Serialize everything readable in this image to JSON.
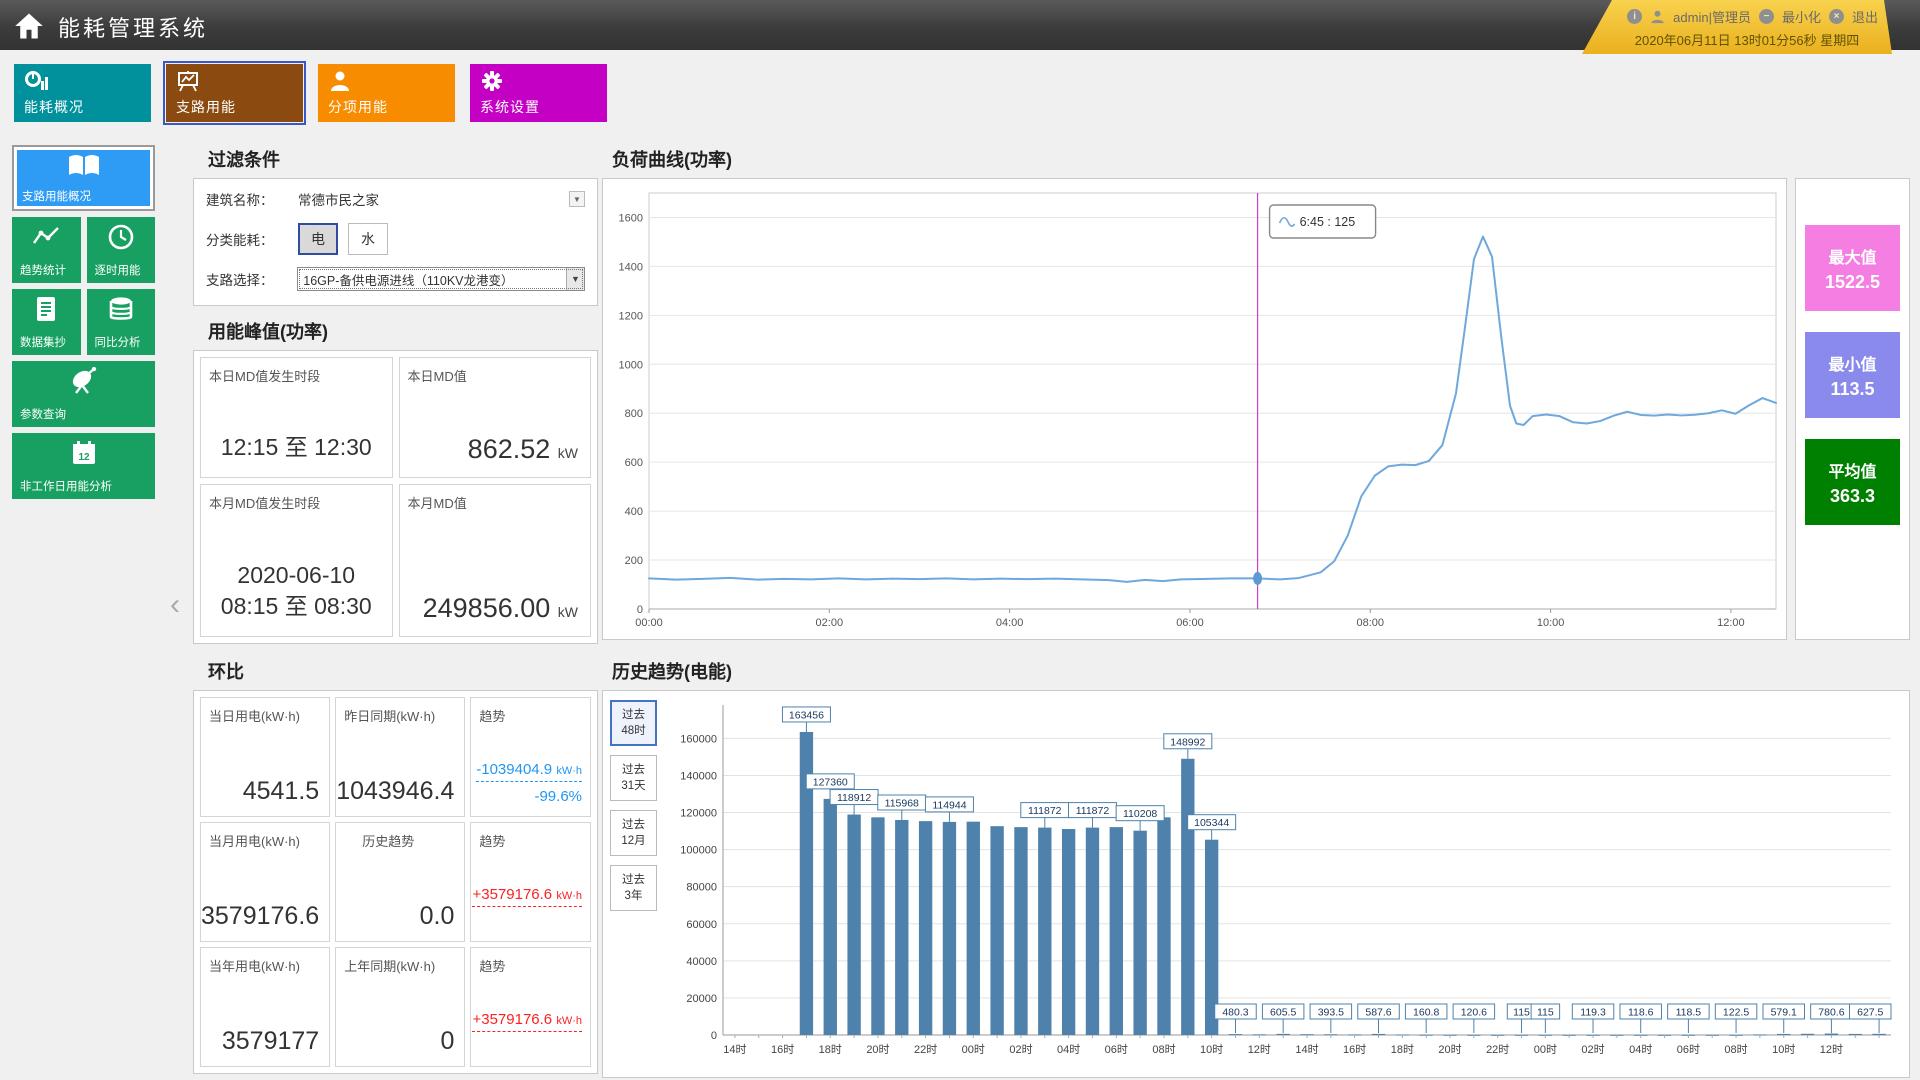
{
  "app": {
    "title": "能耗管理系统"
  },
  "userbar": {
    "user": "admin|管理员",
    "minimize": "最小化",
    "logout": "退出",
    "datetime": "2020年06月11日 13时01分56秒 星期四"
  },
  "nav": [
    {
      "label": "能耗概况",
      "color": "#00919c",
      "active": false
    },
    {
      "label": "支路用能",
      "color": "#8b4a10",
      "active": true
    },
    {
      "label": "分项用能",
      "color": "#f88c00",
      "active": false
    },
    {
      "label": "系统设置",
      "color": "#c400c4",
      "active": false
    }
  ],
  "sidebar": [
    {
      "label": "支路用能概况",
      "color": "#2e9cf4",
      "active": true
    },
    {
      "label": "趋势统计",
      "color": "#17a061",
      "active": false
    },
    {
      "label": "逐时用能",
      "color": "#17a061",
      "active": false
    },
    {
      "label": "数据集抄",
      "color": "#17a061",
      "active": false
    },
    {
      "label": "同比分析",
      "color": "#17a061",
      "active": false
    },
    {
      "label": "参数查询",
      "color": "#17a061",
      "active": false
    },
    {
      "label": "非工作日用能分析",
      "color": "#17a061",
      "active": false
    }
  ],
  "filter": {
    "title": "过滤条件",
    "building_label": "建筑名称：",
    "building_value": "常德市民之家",
    "energy_label": "分类能耗：",
    "energy_options": [
      "电",
      "水"
    ],
    "branch_label": "支路选择：",
    "branch_value": "16GP-备供电源进线（110KV龙港变）"
  },
  "peak": {
    "title": "用能峰值(功率)",
    "cards": [
      {
        "label": "本日MD值发生时段",
        "line1": "12:15  至  12:30",
        "line2": ""
      },
      {
        "label": "本日MD值",
        "value": "862.52",
        "unit": "kW"
      },
      {
        "label": "本月MD值发生时段",
        "line1": "2020-06-10",
        "line2": "08:15  至  08:30"
      },
      {
        "label": "本月MD值",
        "value": "249856.00",
        "unit": "kW"
      }
    ]
  },
  "ring": {
    "title": "环比",
    "cards": [
      {
        "label": "当日用电(kW·h)",
        "value": "4541.5"
      },
      {
        "label": "昨日同期(kW·h)",
        "value": "1043946.4"
      },
      {
        "label": "趋势",
        "value": "-1039404.9",
        "unit": "kW·h",
        "pct": "-99.6%",
        "dir": "down"
      },
      {
        "label": "当月用电(kW·h)",
        "value": "3579176.6"
      },
      {
        "label": "历史趋势",
        "value": "0.0"
      },
      {
        "label": "趋势",
        "value": "+3579176.6",
        "unit": "kW·h",
        "pct": "",
        "dir": "up"
      },
      {
        "label": "当年用电(kW·h)",
        "value": "3579177"
      },
      {
        "label": "上年同期(kW·h)",
        "value": "0"
      },
      {
        "label": "趋势",
        "value": "+3579176.6",
        "unit": "kW·h",
        "pct": "",
        "dir": "up"
      }
    ]
  },
  "badges": [
    {
      "label": "最大值",
      "value": "1522.5",
      "color": "#f57ee3"
    },
    {
      "label": "最小值",
      "value": "113.5",
      "color": "#8a8aec"
    },
    {
      "label": "平均值",
      "value": "363.3",
      "color": "#008000"
    }
  ],
  "history_tabs": [
    {
      "label": "过去\n48时",
      "active": true
    },
    {
      "label": "过去\n31天",
      "active": false
    },
    {
      "label": "过去\n12月",
      "active": false
    },
    {
      "label": "过去\n3年",
      "active": false
    }
  ],
  "chart_data": [
    {
      "id": "load_curve",
      "type": "line",
      "title": "负荷曲线(功率)",
      "ylim": [
        0,
        1700
      ],
      "yticks": [
        0,
        200,
        400,
        600,
        800,
        1000,
        1200,
        1400,
        1600
      ],
      "xlim": [
        0,
        12.5
      ],
      "xticks": [
        {
          "v": 0,
          "label": "00:00"
        },
        {
          "v": 2,
          "label": "02:00"
        },
        {
          "v": 4,
          "label": "04:00"
        },
        {
          "v": 6,
          "label": "06:00"
        },
        {
          "v": 8,
          "label": "08:00"
        },
        {
          "v": 10,
          "label": "10:00"
        },
        {
          "v": 12,
          "label": "12:00"
        }
      ],
      "line_color": "#6fa8dc",
      "crosshair_color": "#cc3fcc",
      "marker": {
        "x": 6.75,
        "y": 125,
        "tooltip": "6:45 : 125"
      },
      "stats": {
        "max": 1522.5,
        "min": 113.5,
        "avg": 363.3
      },
      "points": [
        [
          0,
          125
        ],
        [
          0.3,
          120
        ],
        [
          0.6,
          123
        ],
        [
          0.9,
          127
        ],
        [
          1.2,
          120
        ],
        [
          1.5,
          123
        ],
        [
          1.8,
          121
        ],
        [
          2.1,
          125
        ],
        [
          2.4,
          121
        ],
        [
          2.7,
          124
        ],
        [
          3,
          122
        ],
        [
          3.3,
          125
        ],
        [
          3.6,
          121
        ],
        [
          3.9,
          124
        ],
        [
          4.2,
          122
        ],
        [
          4.5,
          124
        ],
        [
          4.8,
          121
        ],
        [
          5.1,
          118
        ],
        [
          5.3,
          111
        ],
        [
          5.5,
          119
        ],
        [
          5.7,
          114
        ],
        [
          5.9,
          121
        ],
        [
          6.2,
          123
        ],
        [
          6.45,
          125
        ],
        [
          6.75,
          125
        ],
        [
          7,
          121
        ],
        [
          7.2,
          126
        ],
        [
          7.45,
          150
        ],
        [
          7.6,
          195
        ],
        [
          7.75,
          300
        ],
        [
          7.9,
          460
        ],
        [
          8.05,
          545
        ],
        [
          8.2,
          583
        ],
        [
          8.35,
          590
        ],
        [
          8.5,
          588
        ],
        [
          8.65,
          605
        ],
        [
          8.8,
          670
        ],
        [
          8.95,
          880
        ],
        [
          9.05,
          1150
        ],
        [
          9.15,
          1430
        ],
        [
          9.25,
          1522
        ],
        [
          9.35,
          1440
        ],
        [
          9.45,
          1120
        ],
        [
          9.55,
          830
        ],
        [
          9.62,
          758
        ],
        [
          9.7,
          752
        ],
        [
          9.8,
          788
        ],
        [
          9.95,
          795
        ],
        [
          10.1,
          788
        ],
        [
          10.25,
          763
        ],
        [
          10.4,
          758
        ],
        [
          10.55,
          768
        ],
        [
          10.7,
          790
        ],
        [
          10.85,
          806
        ],
        [
          11,
          793
        ],
        [
          11.15,
          790
        ],
        [
          11.3,
          795
        ],
        [
          11.45,
          791
        ],
        [
          11.6,
          794
        ],
        [
          11.75,
          800
        ],
        [
          11.9,
          812
        ],
        [
          12.05,
          798
        ],
        [
          12.2,
          832
        ],
        [
          12.35,
          862
        ],
        [
          12.5,
          842
        ]
      ]
    },
    {
      "id": "history",
      "type": "bar",
      "title": "历史趋势(电能)",
      "ylim": [
        0,
        178000
      ],
      "yticks": [
        0,
        20000,
        40000,
        60000,
        80000,
        100000,
        120000,
        140000,
        160000
      ],
      "bar_color": "#4e81ab",
      "xtick_every": 2,
      "xtick_labels": [
        "14时",
        "16时",
        "18时",
        "20时",
        "22时",
        "00时",
        "02时",
        "04时",
        "06时",
        "08时",
        "10时",
        "12时",
        "14时",
        "16时",
        "18时",
        "20时",
        "22时",
        "00时",
        "02时",
        "04时",
        "06时",
        "08时",
        "10时",
        "12时"
      ],
      "values": [
        0,
        0,
        0,
        163456,
        127360,
        118912,
        117408,
        115968,
        115360,
        114944,
        115072,
        112640,
        112128,
        111872,
        111104,
        111872,
        112128,
        110208,
        117408,
        148992,
        105344,
        480.3,
        350,
        605.5,
        420,
        393.5,
        300,
        587.6,
        260,
        160.8,
        140,
        120.6,
        118,
        115,
        115,
        117,
        119.3,
        118,
        118.6,
        118,
        118.5,
        120,
        122.5,
        300,
        579.1,
        650,
        780.6,
        580,
        627.5
      ],
      "data_labels": [
        {
          "i": 3,
          "t": "163456"
        },
        {
          "i": 4,
          "t": "127360"
        },
        {
          "i": 5,
          "t": "118912"
        },
        {
          "i": 7,
          "t": "115968"
        },
        {
          "i": 9,
          "t": "114944"
        },
        {
          "i": 13,
          "t": "111872"
        },
        {
          "i": 15,
          "t": "111872"
        },
        {
          "i": 17,
          "t": "110208"
        },
        {
          "i": 19,
          "t": "148992"
        },
        {
          "i": 20,
          "t": "105344"
        },
        {
          "i": 21,
          "t": "480.3"
        },
        {
          "i": 23,
          "t": "605.5"
        },
        {
          "i": 25,
          "t": "393.5"
        },
        {
          "i": 27,
          "t": "587.6"
        },
        {
          "i": 29,
          "t": "160.8"
        },
        {
          "i": 31,
          "t": "120.6"
        },
        {
          "i": 33,
          "t": "115"
        },
        {
          "i": 34,
          "t": "115"
        },
        {
          "i": 36,
          "t": "119.3"
        },
        {
          "i": 38,
          "t": "118.6"
        },
        {
          "i": 40,
          "t": "118.5"
        },
        {
          "i": 42,
          "t": "122.5"
        },
        {
          "i": 44,
          "t": "579.1"
        },
        {
          "i": 46,
          "t": "780.6"
        },
        {
          "i": 48,
          "t": "627.5"
        }
      ]
    }
  ]
}
